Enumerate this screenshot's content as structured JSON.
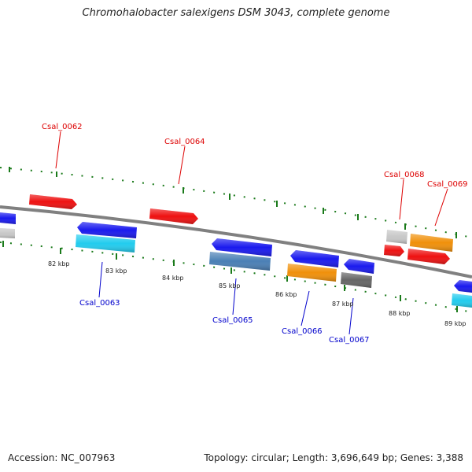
{
  "title": "Chromohalobacter salexigens DSM 3043, complete genome",
  "footer": {
    "accession": "Accession: NC_007963",
    "summary": "Topology: circular; Length: 3,696,649 bp; Genes: 3,388"
  },
  "scale_labels": [
    "82 kbp",
    "83 kbp",
    "84 kbp",
    "85 kbp",
    "86 kbp",
    "87 kbp",
    "88 kbp",
    "89 kbp"
  ],
  "gene_labels": {
    "forward": [
      "Csal_0062",
      "Csal_0064",
      "Csal_0068",
      "Csal_0069"
    ],
    "reverse": [
      "Csal_0063",
      "Csal_0065",
      "Csal_0066",
      "Csal_0067"
    ]
  },
  "colors": {
    "forward_label": "#dd0000",
    "reverse_label": "#0000cc",
    "backbone": "#808080",
    "tick": "#1a7a1a",
    "red": "#ee1111",
    "blue": "#1a1aee",
    "cyan": "#22ccee",
    "steel": "#4a7fb5",
    "orange": "#f0900a",
    "gray": "#c8c8c8",
    "dark_gray": "#666666"
  }
}
